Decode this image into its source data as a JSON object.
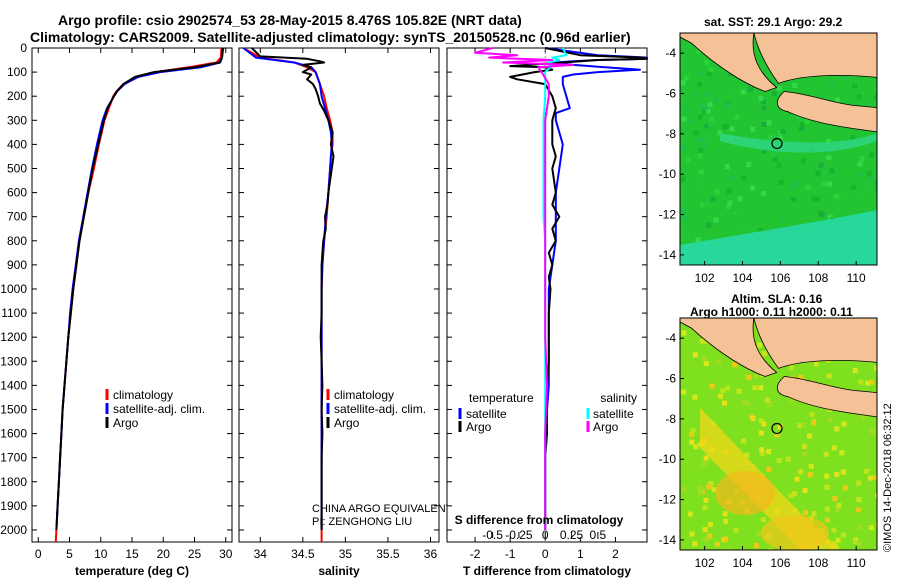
{
  "header": {
    "title_line1": "Argo profile: csio 2902574_53 28-May-2015 8.476S 105.82E (NRT data)",
    "title_line2": "Climatology: CARS2009. Satellite-adjusted climatology: synTS_20150528.nc (0.96d earlier)"
  },
  "depth_axis": {
    "ticks": [
      0,
      100,
      200,
      300,
      400,
      500,
      600,
      700,
      800,
      900,
      1000,
      1100,
      1200,
      1300,
      1400,
      1500,
      1600,
      1700,
      1800,
      1900,
      2000
    ],
    "range": [
      0,
      2050
    ]
  },
  "colors": {
    "climatology": "#ff0000",
    "satellite": "#0000ff",
    "argo": "#000000",
    "s_satellite": "#00ffff",
    "s_argo": "#ff00ff",
    "land": "#f5c196"
  },
  "chart_data": [
    {
      "type": "line",
      "xlabel": "temperature (deg C)",
      "ylabel": "",
      "xlim": [
        -1,
        31
      ],
      "ylim": [
        2050,
        0
      ],
      "xticks": [
        0,
        5,
        10,
        15,
        20,
        25,
        30
      ],
      "xtick_labels": [
        "0",
        "5",
        "10",
        "15",
        "20",
        "25",
        "30"
      ],
      "series": [
        {
          "name": "climatology",
          "depth": [
            0,
            40,
            60,
            80,
            100,
            120,
            150,
            180,
            200,
            250,
            300,
            400,
            500,
            600,
            700,
            800,
            900,
            1000,
            1100,
            1200,
            1300,
            1400,
            1500,
            1600,
            1700,
            1800,
            1900,
            2000,
            2050
          ],
          "values": [
            29.3,
            29.2,
            28.5,
            24.0,
            18.8,
            15.8,
            13.6,
            12.5,
            12.0,
            11.3,
            10.6,
            9.7,
            8.9,
            8.0,
            7.3,
            6.6,
            6.1,
            5.6,
            5.2,
            4.8,
            4.5,
            4.2,
            3.9,
            3.7,
            3.5,
            3.3,
            3.1,
            2.9,
            2.8
          ]
        },
        {
          "name": "satellite-adj. clim.",
          "depth": [
            0,
            40,
            60,
            80,
            100,
            120,
            150,
            180,
            200,
            250,
            300,
            400,
            500,
            600,
            700,
            800,
            900,
            1000,
            1100,
            1200,
            1300,
            1400,
            1500,
            1600,
            1700,
            1800,
            1900,
            2000
          ],
          "values": [
            29.6,
            29.4,
            29.1,
            26.0,
            19.5,
            16.0,
            13.8,
            12.6,
            12.1,
            11.0,
            10.3,
            9.4,
            8.6,
            7.9,
            7.2,
            6.5,
            6.0,
            5.5,
            5.1,
            4.8,
            4.5,
            4.2,
            3.9,
            3.7,
            3.5,
            3.3,
            3.1,
            2.9
          ]
        },
        {
          "name": "Argo",
          "depth": [
            0,
            40,
            60,
            80,
            100,
            120,
            150,
            180,
            200,
            250,
            300,
            400,
            500,
            600,
            700,
            800,
            900,
            1000,
            1100,
            1200,
            1300,
            1400,
            1500,
            1600,
            1700,
            1800,
            1900,
            2000
          ],
          "values": [
            29.5,
            29.4,
            29.0,
            25.0,
            18.5,
            15.5,
            13.6,
            12.6,
            12.1,
            11.1,
            10.5,
            9.6,
            8.7,
            8.0,
            7.3,
            6.6,
            6.1,
            5.6,
            5.2,
            4.8,
            4.5,
            4.2,
            3.9,
            3.7,
            3.5,
            3.3,
            3.1,
            2.9
          ]
        }
      ],
      "legend": [
        "climatology",
        "satellite-adj. clim.",
        "Argo"
      ],
      "legend_position": "lower-right"
    },
    {
      "type": "line",
      "xlabel": "salinity",
      "ylabel": "",
      "xlim": [
        33.75,
        36.1
      ],
      "ylim": [
        2050,
        0
      ],
      "xticks": [
        34,
        34.5,
        35,
        35.5,
        36
      ],
      "xtick_labels": [
        "34",
        "34.5",
        "35",
        "35.5",
        "36"
      ],
      "series": [
        {
          "name": "climatology",
          "depth": [
            0,
            40,
            60,
            80,
            100,
            150,
            200,
            250,
            300,
            350,
            400,
            450,
            500,
            600,
            700,
            800,
            900,
            1000,
            1200,
            1400,
            1600,
            1800,
            2000,
            2050
          ],
          "values": [
            33.8,
            34.0,
            34.4,
            34.55,
            34.65,
            34.7,
            34.75,
            34.78,
            34.82,
            34.85,
            34.85,
            34.83,
            34.82,
            34.8,
            34.78,
            34.75,
            34.73,
            34.72,
            34.72,
            34.72,
            34.72,
            34.72,
            34.72,
            34.72
          ]
        },
        {
          "name": "satellite-adj. clim.",
          "depth": [
            0,
            40,
            60,
            80,
            100,
            150,
            200,
            250,
            300,
            350,
            400,
            450,
            500,
            600,
            700,
            800,
            900,
            1000,
            1200,
            1400,
            1600,
            1800,
            2000
          ],
          "values": [
            33.8,
            33.95,
            34.4,
            34.6,
            34.65,
            34.7,
            34.72,
            34.76,
            34.8,
            34.83,
            34.84,
            34.83,
            34.82,
            34.8,
            34.77,
            34.75,
            34.73,
            34.72,
            34.72,
            34.72,
            34.72,
            34.72,
            34.72
          ]
        },
        {
          "name": "Argo",
          "depth": [
            0,
            35,
            45,
            55,
            60,
            70,
            80,
            90,
            100,
            110,
            130,
            150,
            170,
            200,
            230,
            260,
            300,
            350,
            400,
            450,
            500,
            550,
            600,
            650,
            700,
            750,
            800,
            850,
            900,
            1000,
            1100,
            1200,
            1300,
            1400,
            1500,
            1600,
            1700,
            1800,
            1900,
            2000
          ],
          "values": [
            33.9,
            34.0,
            34.55,
            34.7,
            34.75,
            34.5,
            34.6,
            34.55,
            34.5,
            34.6,
            34.55,
            34.62,
            34.65,
            34.68,
            34.7,
            34.75,
            34.8,
            34.85,
            34.83,
            34.86,
            34.84,
            34.82,
            34.8,
            34.79,
            34.76,
            34.77,
            34.74,
            34.73,
            34.72,
            34.72,
            34.72,
            34.71,
            34.72,
            34.73,
            34.72,
            34.73,
            34.72,
            34.72,
            34.72,
            34.72
          ]
        }
      ],
      "legend": [
        "climatology",
        "satellite-adj. clim.",
        "Argo"
      ],
      "legend_position": "lower-right",
      "annotation": [
        "CHINA ARGO EQUIVALENT",
        "PI: ZENGHONG LIU"
      ]
    },
    {
      "type": "line",
      "xlabel": "T difference from climatology",
      "xlabel_top": "S difference from climatology",
      "xlim": [
        -2.8,
        2.9
      ],
      "ylim": [
        2050,
        0
      ],
      "xticks": [
        -2,
        -1,
        0,
        1,
        2
      ],
      "xtick_labels": [
        "-2",
        "-1",
        "0",
        "1",
        "2"
      ],
      "s_xticks": [
        -1.5,
        -0.75,
        0,
        0.75,
        1.5
      ],
      "s_xtick_labels": [
        "-0.5",
        "-0.25",
        "0",
        "0.25",
        "0.5"
      ],
      "series": [
        {
          "name": "temperature satellite",
          "depth": [
            0,
            30,
            40,
            45,
            50,
            55,
            60,
            70,
            80,
            90,
            100,
            110,
            120,
            150,
            200,
            250,
            270,
            300,
            400,
            500,
            600,
            700,
            800,
            900,
            1000,
            1200,
            1400,
            1600,
            1800,
            2000
          ],
          "values": [
            0,
            1.5,
            2.9,
            2.9,
            1.5,
            0.8,
            0.3,
            0.8,
            1.7,
            2.7,
            1.5,
            0.8,
            0.5,
            0.5,
            0.6,
            0.7,
            0.3,
            0.3,
            0.5,
            0.4,
            0.3,
            0.3,
            0.3,
            0.2,
            0.1,
            0.1,
            0.1,
            0.0,
            0.0,
            0.0
          ]
        },
        {
          "name": "temperature Argo",
          "depth": [
            0,
            30,
            40,
            45,
            50,
            60,
            70,
            75,
            80,
            90,
            100,
            120,
            130,
            150,
            200,
            250,
            300,
            350,
            400,
            450,
            500,
            600,
            650,
            700,
            750,
            800,
            850,
            900,
            950,
            1000,
            1100,
            1200,
            1300,
            1400,
            1500,
            1600,
            1700,
            1800,
            1900,
            2000
          ],
          "values": [
            0,
            1.0,
            2.8,
            2.9,
            1.5,
            0.5,
            -0.5,
            -1.0,
            0.0,
            0.2,
            -0.3,
            -1.0,
            -0.8,
            0.0,
            0.2,
            0.3,
            0.2,
            0.2,
            0.2,
            0.3,
            0.2,
            0.3,
            0.2,
            0.4,
            0.2,
            0.3,
            0.1,
            0.2,
            0.1,
            0.15,
            0.1,
            0.1,
            0.1,
            0.05,
            0.05,
            0.05,
            0.0,
            0.0,
            0.0,
            0.0
          ]
        },
        {
          "name": "salinity satellite",
          "depth": [
            0,
            30,
            40,
            50,
            60,
            80,
            100,
            200,
            300,
            400,
            500,
            600,
            700,
            800,
            900,
            1000,
            1200,
            1400,
            1600,
            1800,
            2000
          ],
          "values": [
            0.5,
            0.6,
            0.2,
            0.4,
            0.1,
            0.15,
            0.0,
            0.0,
            -0.05,
            -0.05,
            -0.05,
            -0.05,
            -0.05,
            0.0,
            0.0,
            0.0,
            0.0,
            0.0,
            0.0,
            0.0,
            0.0
          ]
        },
        {
          "name": "salinity Argo",
          "depth": [
            0,
            20,
            30,
            40,
            50,
            60,
            70,
            80,
            100,
            150,
            200,
            300,
            400,
            600,
            800,
            1000,
            1200,
            1400,
            1600,
            1800,
            2000
          ],
          "values": [
            -1.5,
            -2.0,
            -0.8,
            -1.6,
            0.2,
            -1.2,
            0.8,
            -0.2,
            -0.1,
            0.1,
            0.1,
            0.0,
            0.0,
            0.0,
            0.0,
            0.0,
            0.0,
            0.05,
            0.0,
            0.0,
            0.0
          ]
        }
      ],
      "legend_temperature_title": "temperature",
      "legend_salinity_title": "salinity",
      "legend_items": [
        "satellite",
        "Argo"
      ]
    }
  ],
  "maps": {
    "sst": {
      "title": "sat. SST: 29.1 Argo: 29.2",
      "xticks": [
        "102",
        "104",
        "106",
        "108",
        "110"
      ],
      "yticks": [
        "-4",
        "-6",
        "-8",
        "-10",
        "-12",
        "-14"
      ]
    },
    "sla": {
      "title_line1": "Altim. SLA: 0.16",
      "title_line2": "Argo h1000: 0.11 h2000: 0.11",
      "xticks": [
        "102",
        "104",
        "106",
        "108",
        "110"
      ],
      "yticks": [
        "-4",
        "-6",
        "-8",
        "-10",
        "-12",
        "-14"
      ]
    },
    "lon_range": [
      100.7,
      111.1
    ],
    "lat_range": [
      -14.5,
      -3.0
    ],
    "float_position": {
      "lon": 105.82,
      "lat": -8.476
    }
  },
  "stamp": "©IMOS 14-Dec-2018 06:32:12"
}
